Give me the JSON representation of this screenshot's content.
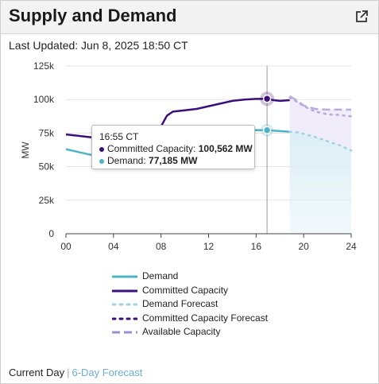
{
  "card": {
    "title": "Supply and Demand",
    "updated": "Last Updated: Jun 8, 2025 18:50 CT"
  },
  "colors": {
    "demand": "#4fb3c7",
    "committed": "#3b0f7c",
    "demand_forecast": "#9fd3e3",
    "committed_forecast": "#b9a8d8",
    "available": "#b9aee0",
    "demand_band": "#dbeef5"
  },
  "tooltip": {
    "time": "16:55 CT",
    "committed_label": "Committed Capacity:",
    "committed_value": "100,562 MW",
    "demand_label": "Demand:",
    "demand_value": "77,185 MW"
  },
  "legend": {
    "demand": "Demand",
    "committed": "Committed Capacity",
    "demand_forecast": "Demand Forecast",
    "committed_forecast": "Committed Capacity Forecast",
    "available": "Available Capacity"
  },
  "footer": {
    "current": "Current Day",
    "separator": "|",
    "forecast": "6-Day Forecast"
  },
  "chart_data": {
    "type": "line",
    "ylabel": "MW",
    "xlim": [
      0,
      24
    ],
    "ylim": [
      0,
      125000
    ],
    "x_ticks": [
      0,
      4,
      8,
      12,
      16,
      20,
      24
    ],
    "x_tick_labels": [
      "00",
      "04",
      "08",
      "12",
      "16",
      "20",
      "24"
    ],
    "y_ticks": [
      0,
      25000,
      50000,
      75000,
      100000,
      125000
    ],
    "y_tick_labels": [
      "0",
      "25k",
      "50k",
      "75k",
      "100k",
      "125k"
    ],
    "grid": true,
    "legend_position": "bottom",
    "current_time": 16.92,
    "series": [
      {
        "name": "Demand",
        "style": "solid",
        "x": [
          0,
          1,
          2,
          3,
          4,
          5,
          6,
          7,
          8,
          9,
          10,
          11,
          12,
          13,
          14,
          15,
          16,
          16.92,
          18,
          18.83
        ],
        "y": [
          63000,
          61000,
          59000,
          57500,
          57000,
          57500,
          59000,
          61000,
          63500,
          66500,
          69500,
          72000,
          74000,
          75500,
          76500,
          77000,
          77200,
          77185,
          76500,
          76000
        ]
      },
      {
        "name": "Committed Capacity",
        "style": "solid",
        "x": [
          0,
          1,
          2,
          3,
          4,
          5,
          6,
          7,
          7.5,
          8,
          8.5,
          9,
          10,
          11,
          12,
          13,
          14,
          15,
          16,
          16.92,
          17.5,
          18,
          18.83
        ],
        "y": [
          74000,
          73000,
          72000,
          71000,
          71500,
          71000,
          70500,
          71000,
          74000,
          80000,
          88000,
          91000,
          92000,
          93000,
          95000,
          97000,
          99000,
          100000,
          100500,
          100562,
          99500,
          99000,
          99500
        ]
      },
      {
        "name": "Demand Forecast",
        "style": "dotted",
        "x": [
          18.83,
          19.5,
          20,
          21,
          22,
          23,
          24
        ],
        "y": [
          76000,
          75500,
          74500,
          72000,
          69000,
          66000,
          62000
        ]
      },
      {
        "name": "Committed Capacity Forecast",
        "style": "dotted",
        "x": [
          18.83,
          19.5,
          20,
          21,
          22,
          23,
          24
        ],
        "y": [
          101500,
          98000,
          95000,
          91000,
          89000,
          88500,
          87500
        ]
      },
      {
        "name": "Available Capacity",
        "style": "dashed",
        "x": [
          18.83,
          19.5,
          20,
          21,
          22,
          23,
          24
        ],
        "y": [
          102500,
          99000,
          95500,
          93000,
          92500,
          92500,
          92500
        ]
      }
    ]
  }
}
